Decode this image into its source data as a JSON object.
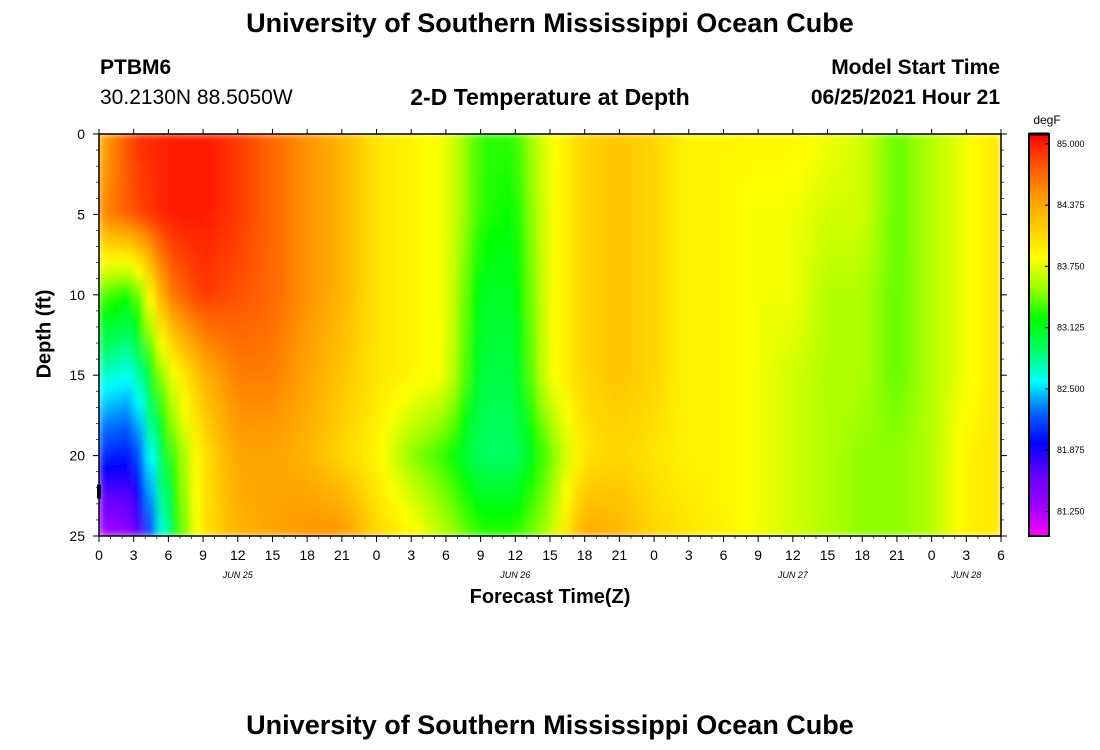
{
  "header": {
    "title": "University of Southern Mississippi Ocean Cube",
    "station_id": "PTBM6",
    "location": "30.2130N  88.5050W",
    "plot_title": "2-D Temperature at Depth",
    "model_start_label": "Model Start Time",
    "model_start_value": "06/25/2021 Hour 21"
  },
  "footer": {
    "title": "University of Southern Mississippi Ocean Cube"
  },
  "colors": {
    "scale": [
      "#ff00ff",
      "#9900ff",
      "#6600ff",
      "#0000ff",
      "#0066ff",
      "#00ffff",
      "#00ff66",
      "#00ff00",
      "#99ff00",
      "#ffff00",
      "#ffcc00",
      "#ff9900",
      "#ff5500",
      "#ff0000"
    ]
  },
  "chart_data": {
    "type": "heatmap",
    "title": "2-D Temperature at Depth",
    "xlabel": "Forecast Time(Z)",
    "ylabel": "Depth (ft)",
    "x_range_hours": [
      0,
      78
    ],
    "y_range_ft": [
      0,
      25
    ],
    "y_inverted": true,
    "x_ticks": [
      "0",
      "3",
      "6",
      "9",
      "12",
      "15",
      "18",
      "21",
      "0",
      "3",
      "6",
      "9",
      "12",
      "15",
      "18",
      "21",
      "0",
      "3",
      "6",
      "9",
      "12",
      "15",
      "18",
      "21",
      "0",
      "3",
      "6"
    ],
    "y_ticks": [
      "0",
      "5",
      "10",
      "15",
      "20",
      "25"
    ],
    "date_labels": [
      {
        "label": "JUN 25",
        "hour": 12
      },
      {
        "label": "JUN 26",
        "hour": 36
      },
      {
        "label": "JUN 27",
        "hour": 60
      },
      {
        "label": "JUN 28",
        "hour": 75
      }
    ],
    "colorbar": {
      "unit": "degF",
      "min": 81.0,
      "max": 85.1,
      "ticks": [
        "85.000",
        "84.375",
        "83.750",
        "83.125",
        "82.500",
        "81.875",
        "81.250"
      ],
      "tick_values": [
        85.0,
        84.375,
        83.75,
        83.125,
        82.5,
        81.875,
        81.25
      ]
    },
    "depth_levels_ft": [
      0,
      5,
      10,
      15,
      20,
      25
    ],
    "time_hours": [
      0,
      3,
      6,
      9,
      12,
      15,
      18,
      21,
      24,
      27,
      30,
      33,
      36,
      39,
      42,
      45,
      48,
      51,
      54,
      57,
      60,
      63,
      66,
      69,
      72,
      75,
      78
    ],
    "temperature_degF": [
      [
        84.3,
        84.9,
        85.0,
        85.0,
        84.9,
        84.7,
        84.5,
        84.3,
        84.0,
        83.9,
        83.8,
        83.3,
        83.3,
        83.8,
        84.1,
        84.2,
        84.1,
        83.9,
        83.9,
        83.9,
        83.9,
        83.8,
        83.7,
        83.4,
        83.6,
        83.8,
        84.0
      ],
      [
        84.5,
        84.8,
        85.0,
        85.0,
        84.9,
        84.7,
        84.5,
        84.3,
        84.0,
        83.9,
        83.8,
        83.3,
        83.2,
        83.8,
        84.1,
        84.2,
        84.1,
        83.9,
        83.9,
        83.8,
        83.8,
        83.7,
        83.7,
        83.4,
        83.6,
        83.8,
        84.0
      ],
      [
        83.4,
        83.2,
        84.6,
        84.9,
        84.8,
        84.7,
        84.5,
        84.3,
        84.0,
        83.9,
        83.8,
        83.1,
        83.1,
        83.8,
        84.1,
        84.2,
        84.1,
        83.9,
        83.9,
        83.8,
        83.8,
        83.6,
        83.6,
        83.4,
        83.6,
        83.8,
        84.0
      ],
      [
        82.7,
        82.6,
        83.7,
        84.3,
        84.6,
        84.6,
        84.4,
        84.2,
        84.0,
        83.9,
        83.8,
        83.0,
        83.0,
        83.8,
        84.1,
        84.2,
        84.1,
        83.9,
        83.9,
        83.8,
        83.7,
        83.6,
        83.6,
        83.4,
        83.6,
        83.8,
        84.0
      ],
      [
        82.1,
        82.0,
        83.2,
        84.0,
        84.4,
        84.4,
        84.3,
        84.1,
        83.9,
        83.5,
        83.3,
        82.9,
        82.9,
        83.4,
        84.0,
        84.1,
        84.0,
        83.9,
        83.9,
        83.8,
        83.7,
        83.6,
        83.5,
        83.5,
        83.6,
        83.9,
        84.0
      ],
      [
        81.2,
        81.4,
        82.9,
        84.0,
        84.3,
        84.4,
        84.5,
        84.5,
        84.1,
        83.9,
        83.6,
        83.3,
        83.3,
        83.6,
        84.4,
        84.3,
        84.1,
        84.0,
        83.9,
        83.8,
        83.7,
        83.6,
        83.5,
        83.5,
        83.6,
        83.9,
        84.0
      ]
    ]
  }
}
